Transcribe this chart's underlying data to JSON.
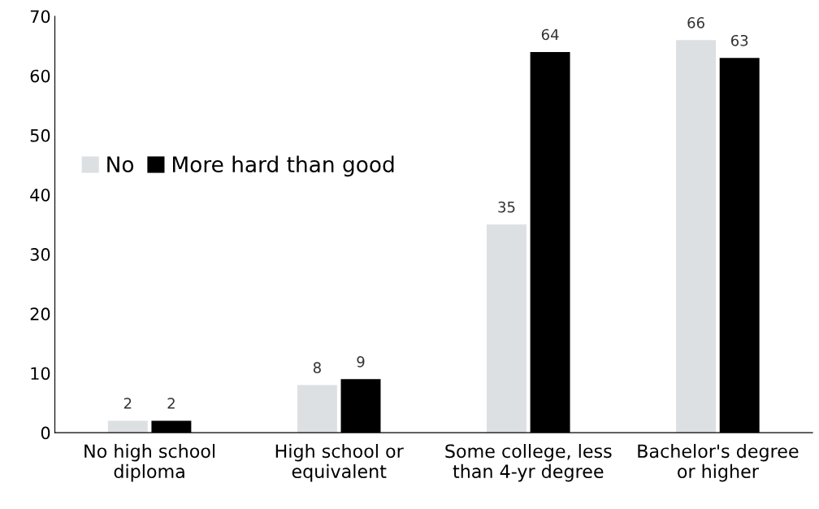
{
  "chart_data": {
    "type": "bar",
    "categories": [
      "No high school\ndiploma",
      "High school or\nequivalent",
      "Some college, less\nthan 4-yr degree",
      "Bachelor's degree\nor higher"
    ],
    "series": [
      {
        "name": "No",
        "color": "#dde0e3",
        "values": [
          2,
          8,
          35,
          66
        ]
      },
      {
        "name": "More hard than good",
        "color": "#000000",
        "values": [
          2,
          9,
          64,
          63
        ]
      }
    ],
    "ylim": [
      0,
      70
    ],
    "yticks": [
      0,
      10,
      20,
      30,
      40,
      50,
      60,
      70
    ],
    "data_labels": true,
    "grid": false,
    "legend": "left"
  }
}
